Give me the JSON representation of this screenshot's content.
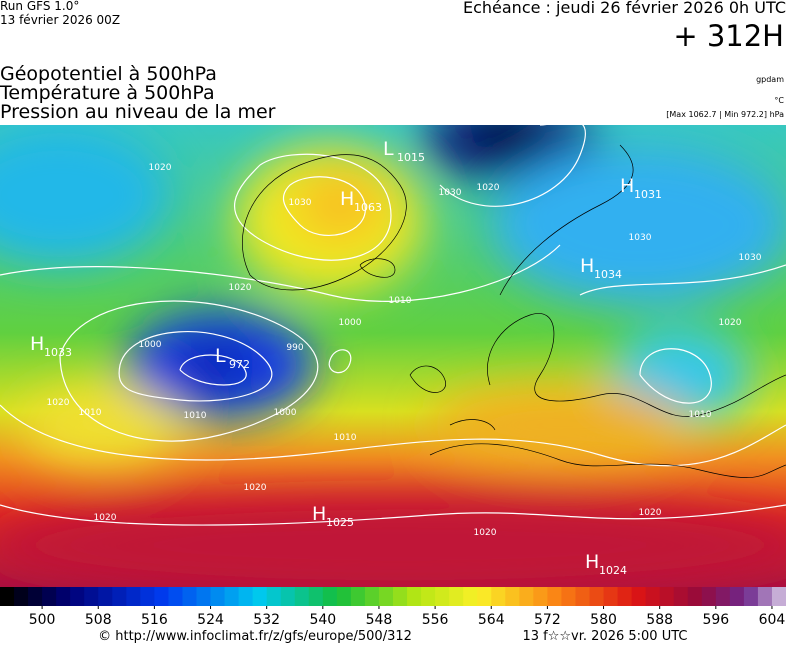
{
  "header": {
    "run": "Run GFS 1.0°",
    "run_date": "13 février 2026 00Z",
    "forecast": "Echéance : jeudi 26 février 2026 0h UTC",
    "lead": "+ 312H",
    "fields": [
      "Géopotentiel à 500hPa",
      "Température à 500hPa",
      "Pression au niveau de la mer"
    ],
    "units": [
      "gpdam",
      "°C",
      "[Max 1062.7 | Min 972.2] hPa"
    ]
  },
  "map": {
    "centers": [
      {
        "letter": "H",
        "value": "1063"
      },
      {
        "letter": "L",
        "value": "1015"
      },
      {
        "letter": "H",
        "value": "1031"
      },
      {
        "letter": "H",
        "value": "1034"
      },
      {
        "letter": "H",
        "value": "1033"
      },
      {
        "letter": "L",
        "value": "972"
      },
      {
        "letter": "H",
        "value": "1025"
      },
      {
        "letter": "H",
        "value": "1024"
      }
    ],
    "isobar_labels": [
      "1030",
      "1020",
      "1030",
      "1030",
      "1020",
      "1010",
      "1020",
      "1010",
      "1000",
      "990",
      "1000",
      "1010",
      "1020",
      "1000",
      "1010",
      "1020",
      "1020",
      "1020",
      "1030",
      "1020",
      "1010",
      "1020"
    ]
  },
  "colorbar": {
    "range": [
      494,
      606
    ],
    "step": 2,
    "ticks": [
      500,
      508,
      516,
      524,
      532,
      540,
      548,
      556,
      564,
      572,
      580,
      588,
      596,
      604
    ]
  },
  "footer": {
    "url": "© http://www.infoclimat.fr/z/gfs/europe/500/312",
    "time": "13 f☆☆vr. 2026  5:00 UTC"
  }
}
